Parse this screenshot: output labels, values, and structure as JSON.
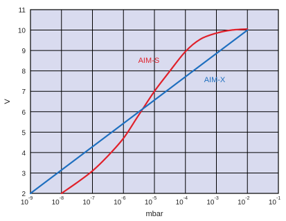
{
  "chart_data": {
    "type": "line",
    "xlabel": "mbar",
    "ylabel": "V",
    "xscale": "log",
    "xlim": [
      1e-09,
      0.1
    ],
    "ylim": [
      2,
      11
    ],
    "x_ticks": [
      {
        "base": "10",
        "exp": "-9"
      },
      {
        "base": "10",
        "exp": "-8"
      },
      {
        "base": "10",
        "exp": "-7"
      },
      {
        "base": "10",
        "exp": "-6"
      },
      {
        "base": "10",
        "exp": "-5"
      },
      {
        "base": "10",
        "exp": "-4"
      },
      {
        "base": "10",
        "exp": "-3"
      },
      {
        "base": "10",
        "exp": "-2"
      },
      {
        "base": "10",
        "exp": "-1"
      }
    ],
    "y_ticks": [
      "2",
      "3",
      "4",
      "5",
      "6",
      "7",
      "8",
      "9",
      "10",
      "11"
    ],
    "grid": true,
    "series": [
      {
        "name": "AIM-S",
        "color": "#e0202a",
        "x": [
          1e-08,
          3e-08,
          1e-07,
          3e-07,
          1e-06,
          3e-06,
          1e-05,
          3e-05,
          0.0001,
          0.0003,
          0.001,
          0.003,
          0.01
        ],
        "y": [
          2.0,
          2.5,
          3.1,
          3.8,
          4.7,
          5.8,
          7.0,
          7.95,
          8.95,
          9.55,
          9.85,
          10.0,
          10.05
        ]
      },
      {
        "name": "AIM-X",
        "color": "#1e6fbf",
        "x": [
          1e-09,
          0.01
        ],
        "y": [
          2.0,
          10.0
        ]
      }
    ],
    "colors": {
      "plot_background": "#d9dbef",
      "grid": "#000000"
    }
  }
}
